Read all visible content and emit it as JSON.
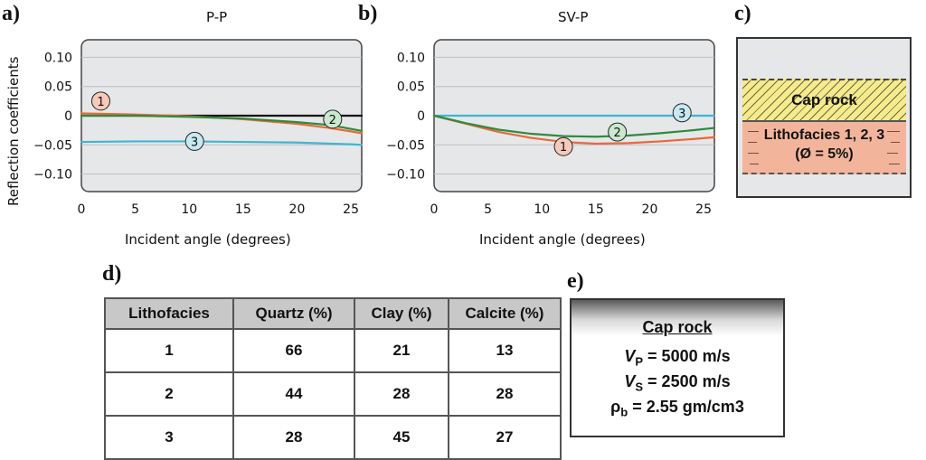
{
  "panel_labels": {
    "a": "a)",
    "b": "b)",
    "c": "c)",
    "d": "d)",
    "e": "e)"
  },
  "chart_data": [
    {
      "type": "line",
      "title": "P-P",
      "xlabel": "Incident angle (degrees)",
      "ylabel": "Reflection coefficients",
      "xlim": [
        0,
        26
      ],
      "ylim": [
        -0.13,
        0.13
      ],
      "xticks": [
        "0",
        "5",
        "10",
        "15",
        "20",
        "25"
      ],
      "yticks": [
        "0.10",
        "0.05",
        "0",
        "−0.05",
        "−0.10"
      ],
      "grid": true,
      "series": [
        {
          "name": "zero",
          "color": "#111111",
          "x": [
            0,
            26
          ],
          "y": [
            0,
            0
          ]
        },
        {
          "name": "1",
          "color": "#e8683a",
          "x": [
            0,
            5,
            10,
            15,
            20,
            23,
            26
          ],
          "y": [
            0.004,
            0.002,
            -0.001,
            -0.006,
            -0.014,
            -0.021,
            -0.03
          ]
        },
        {
          "name": "2",
          "color": "#2e8b3e",
          "x": [
            0,
            5,
            10,
            15,
            20,
            23,
            26
          ],
          "y": [
            0.0,
            0.0,
            -0.002,
            -0.005,
            -0.011,
            -0.016,
            -0.026
          ]
        },
        {
          "name": "3",
          "color": "#3cb6d6",
          "x": [
            0,
            5,
            10,
            15,
            20,
            25,
            26
          ],
          "y": [
            -0.045,
            -0.044,
            -0.044,
            -0.045,
            -0.046,
            -0.049,
            -0.05
          ]
        }
      ],
      "markers": [
        {
          "label": "1",
          "x": 1.8,
          "y": 0.025,
          "fill": "#f7c9b8"
        },
        {
          "label": "2",
          "x": 23.3,
          "y": -0.006,
          "fill": "#c9e8cf"
        },
        {
          "label": "3",
          "x": 10.5,
          "y": -0.044,
          "fill": "#c6e9f2"
        }
      ]
    },
    {
      "type": "line",
      "title": "SV-P",
      "xlabel": "Incident angle (degrees)",
      "ylabel": "",
      "xlim": [
        0,
        26
      ],
      "ylim": [
        -0.13,
        0.13
      ],
      "xticks": [
        "0",
        "5",
        "10",
        "15",
        "20",
        "25"
      ],
      "yticks": [
        "0.10",
        "0.05",
        "0",
        "−0.05",
        "−0.10"
      ],
      "grid": true,
      "series": [
        {
          "name": "3",
          "color": "#3cb6d6",
          "x": [
            0,
            26
          ],
          "y": [
            0,
            0
          ]
        },
        {
          "name": "1",
          "color": "#e8683a",
          "x": [
            0,
            3,
            6,
            9,
            12,
            15,
            18,
            21,
            24,
            26
          ],
          "y": [
            0,
            -0.014,
            -0.028,
            -0.038,
            -0.045,
            -0.048,
            -0.047,
            -0.044,
            -0.04,
            -0.037
          ]
        },
        {
          "name": "2",
          "color": "#2e8b3e",
          "x": [
            0,
            3,
            6,
            9,
            12,
            15,
            18,
            21,
            24,
            26
          ],
          "y": [
            0,
            -0.013,
            -0.024,
            -0.031,
            -0.035,
            -0.036,
            -0.034,
            -0.03,
            -0.025,
            -0.021
          ]
        }
      ],
      "markers": [
        {
          "label": "1",
          "x": 12,
          "y": -0.053,
          "fill": "#f7c9b8"
        },
        {
          "label": "2",
          "x": 17,
          "y": -0.028,
          "fill": "#c9e8cf"
        },
        {
          "label": "3",
          "x": 23,
          "y": 0.005,
          "fill": "#c6e9f2"
        }
      ]
    }
  ],
  "panel_c": {
    "cap_rock": "Cap rock",
    "litho_line1": "Lithofacies 1, 2, 3",
    "litho_line2": "(Ø = 5%)"
  },
  "table_d": {
    "headers": [
      "Lithofacies",
      "Quartz (%)",
      "Clay (%)",
      "Calcite (%)"
    ],
    "rows": [
      [
        "1",
        "66",
        "21",
        "13"
      ],
      [
        "2",
        "44",
        "28",
        "28"
      ],
      [
        "3",
        "28",
        "45",
        "27"
      ]
    ]
  },
  "panel_e": {
    "title": "Cap rock",
    "vp_sym": "V",
    "vp_sub": "P",
    "vp_val": " = 5000 m/s",
    "vs_sym": "V",
    "vs_sub": "S",
    "vs_val": " = 2500 m/s",
    "rho_sym": "ρ",
    "rho_sub": "b",
    "rho_val": " = 2.55  gm/cm3"
  }
}
